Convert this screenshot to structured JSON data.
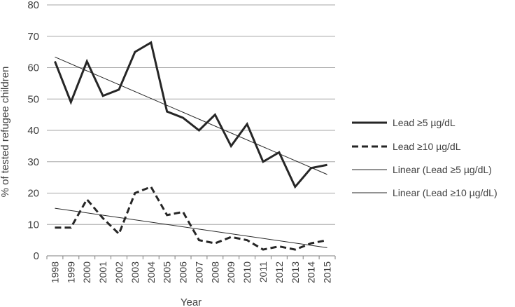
{
  "chart_data": {
    "type": "line",
    "xlabel": "Year",
    "ylabel": "% of tested refugee children",
    "ylim": [
      0,
      80
    ],
    "yticks": [
      0,
      10,
      20,
      30,
      40,
      50,
      60,
      70,
      80
    ],
    "grid": "horizontal",
    "legend_position": "right",
    "categories": [
      "1998",
      "1999",
      "2000",
      "2001",
      "2002",
      "2003",
      "2004",
      "2005",
      "2006",
      "2007",
      "2008",
      "2009",
      "2010",
      "2011",
      "2012",
      "2013",
      "2014",
      "2015"
    ],
    "series": [
      {
        "name": "Lead ≥5 µg/dL",
        "style": "solid-thick",
        "color": "#262626",
        "values": [
          62,
          49,
          62,
          51,
          53,
          65,
          68,
          46,
          44,
          40,
          45,
          35,
          42,
          30,
          33,
          22,
          28,
          29
        ]
      },
      {
        "name": "Lead ≥10 µg/dL",
        "style": "dashed-thick",
        "color": "#262626",
        "values": [
          9,
          9,
          18,
          12,
          7,
          20,
          22,
          13,
          14,
          5,
          4,
          6,
          5,
          2,
          3,
          2,
          4,
          5
        ]
      },
      {
        "name": "Linear (Lead ≥5 µg/dL)",
        "style": "trendline",
        "color": "#262626",
        "trend_of": 0
      },
      {
        "name": "Linear (Lead ≥10 µg/dL)",
        "style": "trendline",
        "color": "#262626",
        "trend_of": 1
      }
    ]
  }
}
